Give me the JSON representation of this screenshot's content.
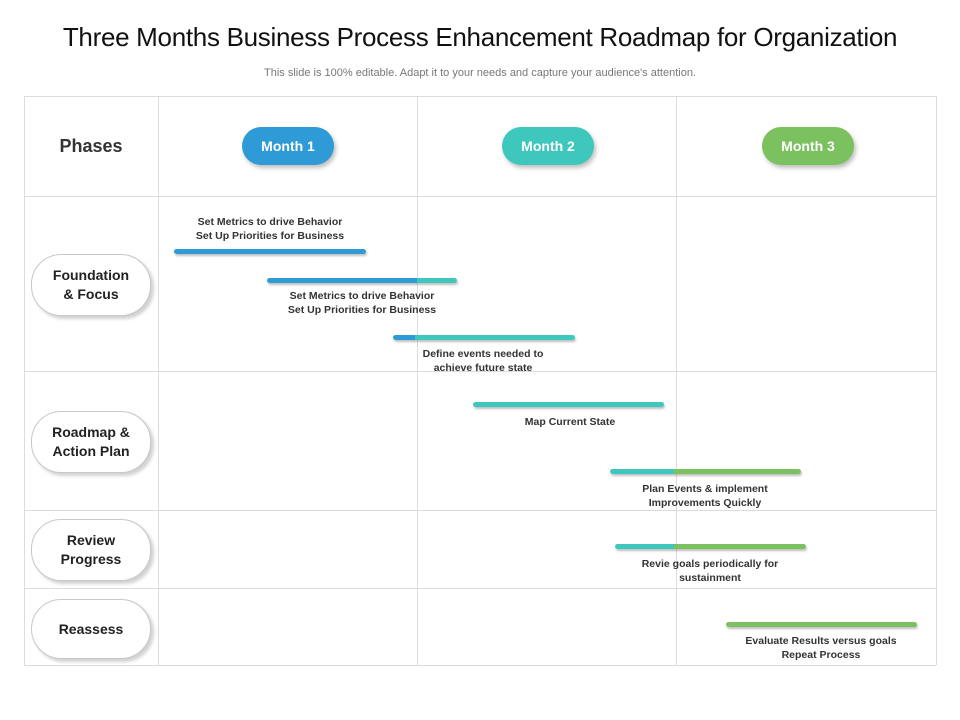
{
  "title": "Three Months Business Process Enhancement Roadmap for Organization",
  "subtitle": "This slide is 100% editable. Adapt it to your needs and capture your audience's attention.",
  "phases_header": "Phases",
  "colors": {
    "month1": "#2f9bd6",
    "month2": "#3ec8bd",
    "month3": "#7cc160"
  },
  "months": [
    {
      "label": "Month 1"
    },
    {
      "label": "Month 2"
    },
    {
      "label": "Month 3"
    }
  ],
  "phases": [
    {
      "label": "Foundation\n& Focus"
    },
    {
      "label": "Roadmap &\nAction Plan"
    },
    {
      "label": "Review\nProgress"
    },
    {
      "label": "Reassess"
    }
  ],
  "tasks": [
    {
      "label": "Set Metrics to drive Behavior\nSet Up Priorities for Business"
    },
    {
      "label": "Set Metrics to drive Behavior\nSet Up Priorities for Business"
    },
    {
      "label": "Define events needed to\nachieve future state"
    },
    {
      "label": "Map Current State"
    },
    {
      "label": "Plan Events & implement\nImprovements Quickly"
    },
    {
      "label": "Revie goals periodically for\nsustainment"
    },
    {
      "label": "Evaluate Results versus goals\nRepeat Process"
    }
  ]
}
